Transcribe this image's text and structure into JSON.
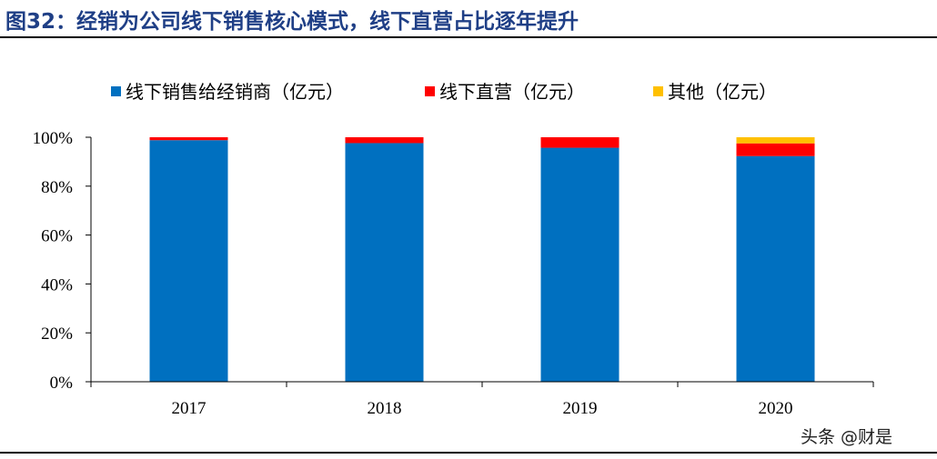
{
  "header": {
    "title": "图32：经销为公司线下销售核心模式，线下直营占比逐年提升"
  },
  "watermark": "头条 @财是",
  "chart_data": {
    "type": "bar",
    "stacked": true,
    "percent": true,
    "categories": [
      "2017",
      "2018",
      "2019",
      "2020"
    ],
    "series": [
      {
        "name": "线下销售给经销商（亿元）",
        "color": "#0070c0",
        "values": [
          98.8,
          97.6,
          95.7,
          92.3
        ]
      },
      {
        "name": "线下直营（亿元）",
        "color": "#ff0000",
        "values": [
          1.2,
          2.4,
          4.3,
          5.2
        ]
      },
      {
        "name": "其他（亿元）",
        "color": "#ffc000",
        "values": [
          0,
          0,
          0,
          2.5
        ]
      }
    ],
    "yticks": [
      "0%",
      "20%",
      "40%",
      "60%",
      "80%",
      "100%"
    ],
    "ylim": [
      0,
      100
    ],
    "grid": false,
    "legend_position": "top"
  }
}
